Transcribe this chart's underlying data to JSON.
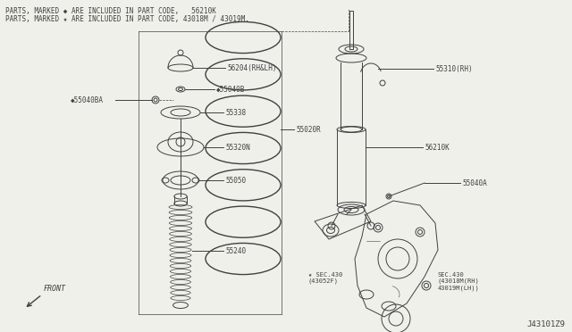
{
  "bg_color": "#f0f0eb",
  "line_color": "#404040",
  "title_line1": "PARTS, MARKED ◆ ARE INCLUDED IN PART CODE,   56210K",
  "title_line2": "PARTS, MARKED ★ ARE INCLUDED IN PART CODE, 43018M / 43019M.",
  "diagram_id": "J43101Z9",
  "labels": {
    "56204": "56204(RH&LH)",
    "55040B": "◆55040B",
    "55040BA": "◆55040BA",
    "55338": "55338",
    "55320N": "55320N",
    "55050": "55050",
    "55240": "55240",
    "55020R": "55020R",
    "55310": "55310(RH)",
    "56210K": "56210K",
    "55040A": "55040A",
    "sec430_1": "★ SEC.430\n(43052F)",
    "sec430_2": "SEC.430\n(43018M(RH)\n43019M(LH))"
  },
  "front_label": "FRONT"
}
